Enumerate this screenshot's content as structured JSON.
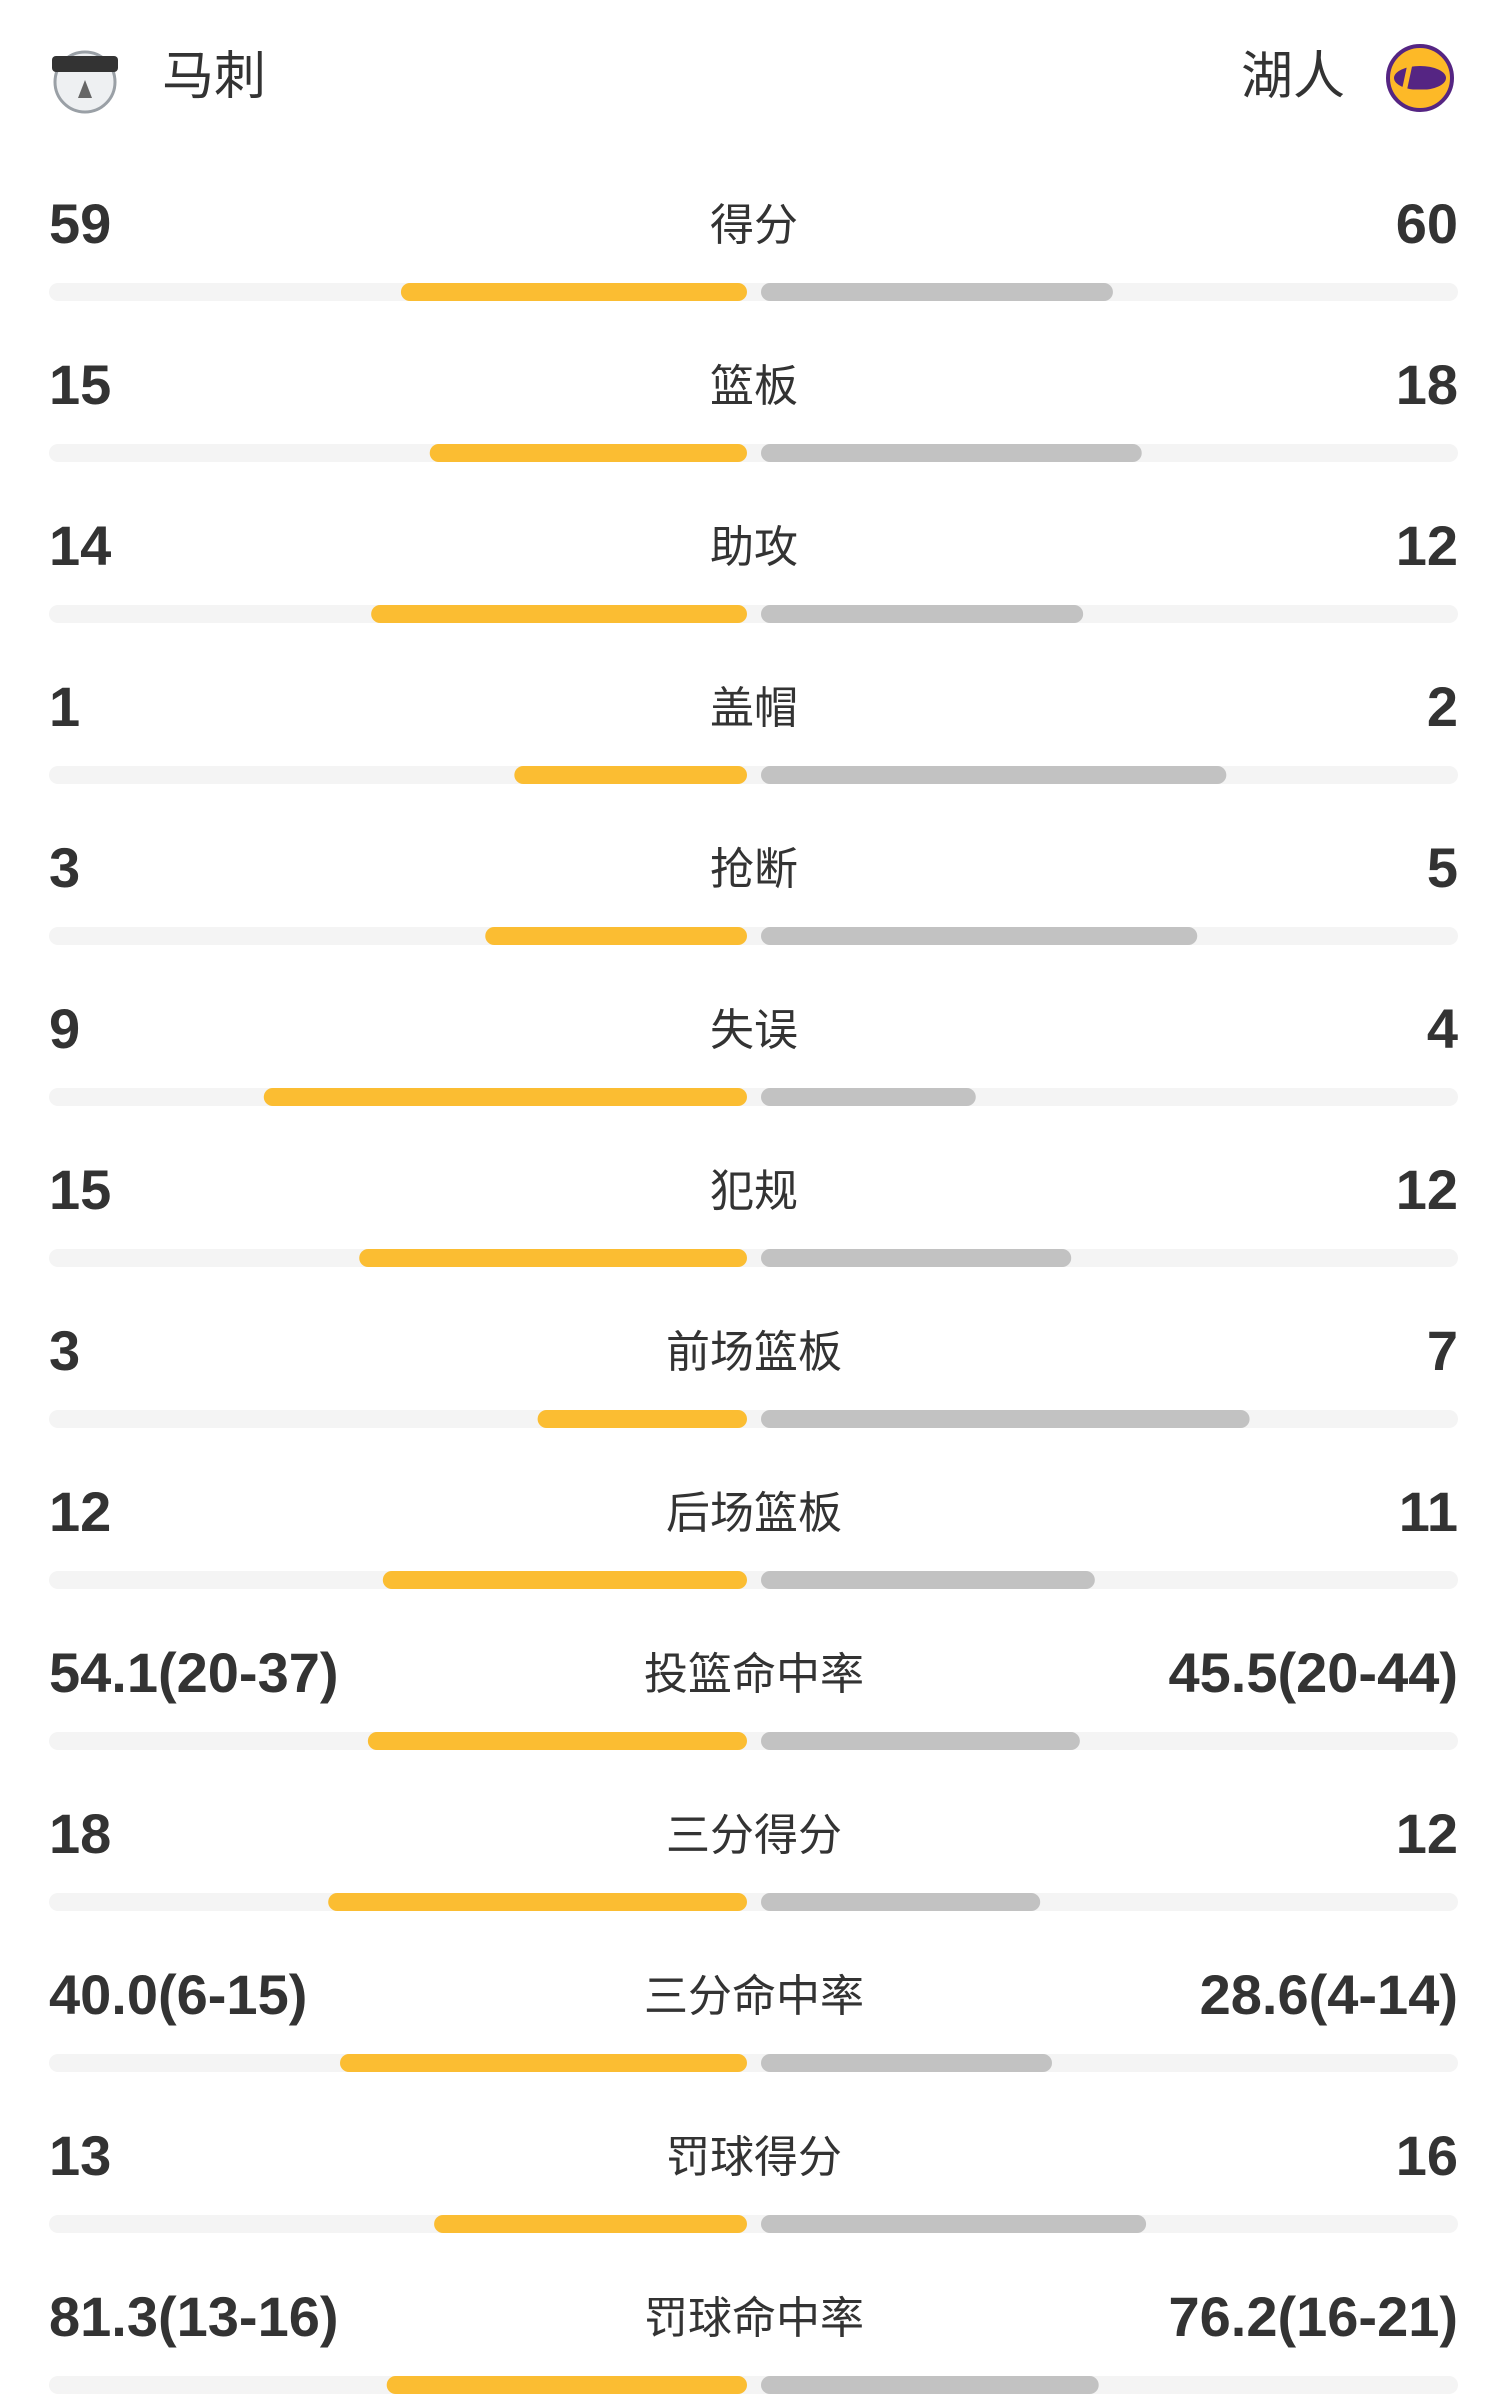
{
  "header": {
    "home": "马刺",
    "away": "湖人"
  },
  "rows": [
    {
      "label": "得分",
      "left": 59,
      "right": 60
    },
    {
      "label": "篮板",
      "left": 15,
      "right": 18
    },
    {
      "label": "助攻",
      "left": 14,
      "right": 12
    },
    {
      "label": "盖帽",
      "left": 1,
      "right": 2
    },
    {
      "label": "抢断",
      "left": 3,
      "right": 5
    },
    {
      "label": "失误",
      "left": 9,
      "right": 4
    },
    {
      "label": "犯规",
      "left": 15,
      "right": 12
    },
    {
      "label": "前场篮板",
      "left": 3,
      "right": 7
    },
    {
      "label": "后场篮板",
      "left": 12,
      "right": 11
    },
    {
      "label": "投篮命中率",
      "left": "54.1(20-37)",
      "right": "45.5(20-44)"
    },
    {
      "label": "三分得分",
      "left": 18,
      "right": 12
    },
    {
      "label": "三分命中率",
      "left": "40.0(6-15)",
      "right": "28.6(4-14)"
    },
    {
      "label": "罚球得分",
      "left": 13,
      "right": 16
    },
    {
      "label": "罚球命中率",
      "left": "81.3(13-16)",
      "right": "76.2(16-21)"
    }
  ]
}
